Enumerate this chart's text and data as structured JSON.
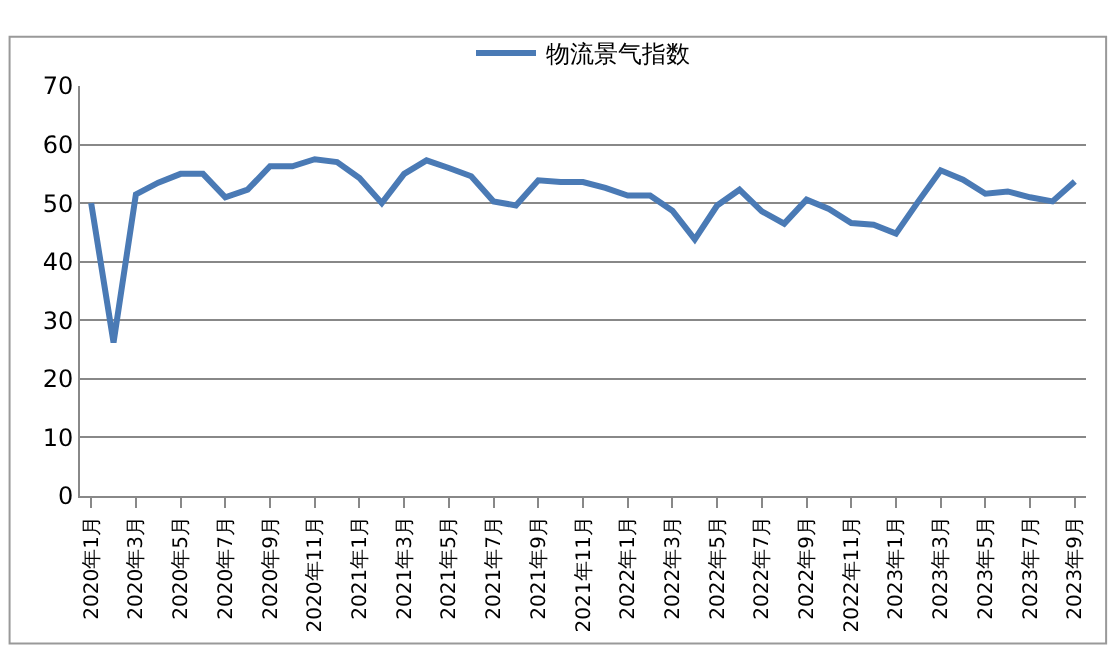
{
  "chart_data": {
    "type": "line",
    "categories": [
      "2020年1月",
      null,
      "2020年3月",
      null,
      "2020年5月",
      null,
      "2020年7月",
      null,
      "2020年9月",
      null,
      "2020年11月",
      null,
      "2021年1月",
      null,
      "2021年3月",
      null,
      "2021年5月",
      null,
      "2021年7月",
      null,
      "2021年9月",
      null,
      "2021年11月",
      null,
      "2022年1月",
      null,
      "2022年3月",
      null,
      "2022年5月",
      null,
      "2022年7月",
      null,
      "2022年9月",
      null,
      "2022年11月",
      null,
      "2023年1月",
      null,
      "2023年3月",
      null,
      "2023年5月",
      null,
      "2023年7月",
      null,
      "2023年9月"
    ],
    "series": [
      {
        "name": "物流景气指数",
        "color": "#4a7ab5",
        "values": [
          50,
          26.2,
          51.5,
          53.5,
          55,
          55,
          51,
          52.3,
          56.3,
          56.3,
          57.5,
          57,
          54.3,
          50,
          55,
          57.3,
          56,
          54.6,
          50.3,
          49.6,
          53.9,
          53.6,
          53.6,
          52.6,
          51.3,
          51.3,
          48.7,
          43.8,
          49.6,
          52.3,
          48.6,
          46.5,
          50.6,
          49,
          46.6,
          46.3,
          44.8,
          50.3,
          55.6,
          54,
          51.6,
          52,
          51,
          50.3,
          53.7
        ]
      }
    ],
    "ylim": [
      0,
      70
    ],
    "yticks": [
      0,
      10,
      20,
      30,
      40,
      50,
      60,
      70
    ],
    "grid": "y",
    "legend": "top",
    "marker": "none",
    "line_style": "solid"
  }
}
